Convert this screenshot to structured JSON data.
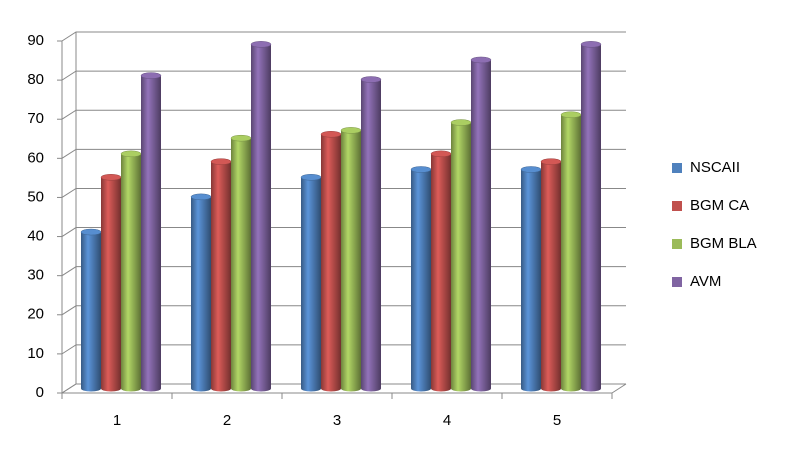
{
  "chart_data": {
    "type": "bar3d",
    "categories": [
      "1",
      "2",
      "3",
      "4",
      "5"
    ],
    "series": [
      {
        "name": "NSCAII",
        "color": "#4f81bd",
        "values": [
          40,
          49,
          54,
          56,
          56
        ]
      },
      {
        "name": "BGM CA",
        "color": "#c0504d",
        "values": [
          54,
          58,
          65,
          60,
          58
        ]
      },
      {
        "name": "BGM BLA",
        "color": "#9bbb59",
        "values": [
          60,
          64,
          66,
          68,
          70
        ]
      },
      {
        "name": "AVM",
        "color": "#8064a2",
        "values": [
          80,
          88,
          79,
          84,
          88
        ]
      }
    ],
    "ylim": [
      0,
      90
    ],
    "yticks": [
      0,
      10,
      20,
      30,
      40,
      50,
      60,
      70,
      80,
      90
    ],
    "grid": true,
    "legend": "right"
  }
}
